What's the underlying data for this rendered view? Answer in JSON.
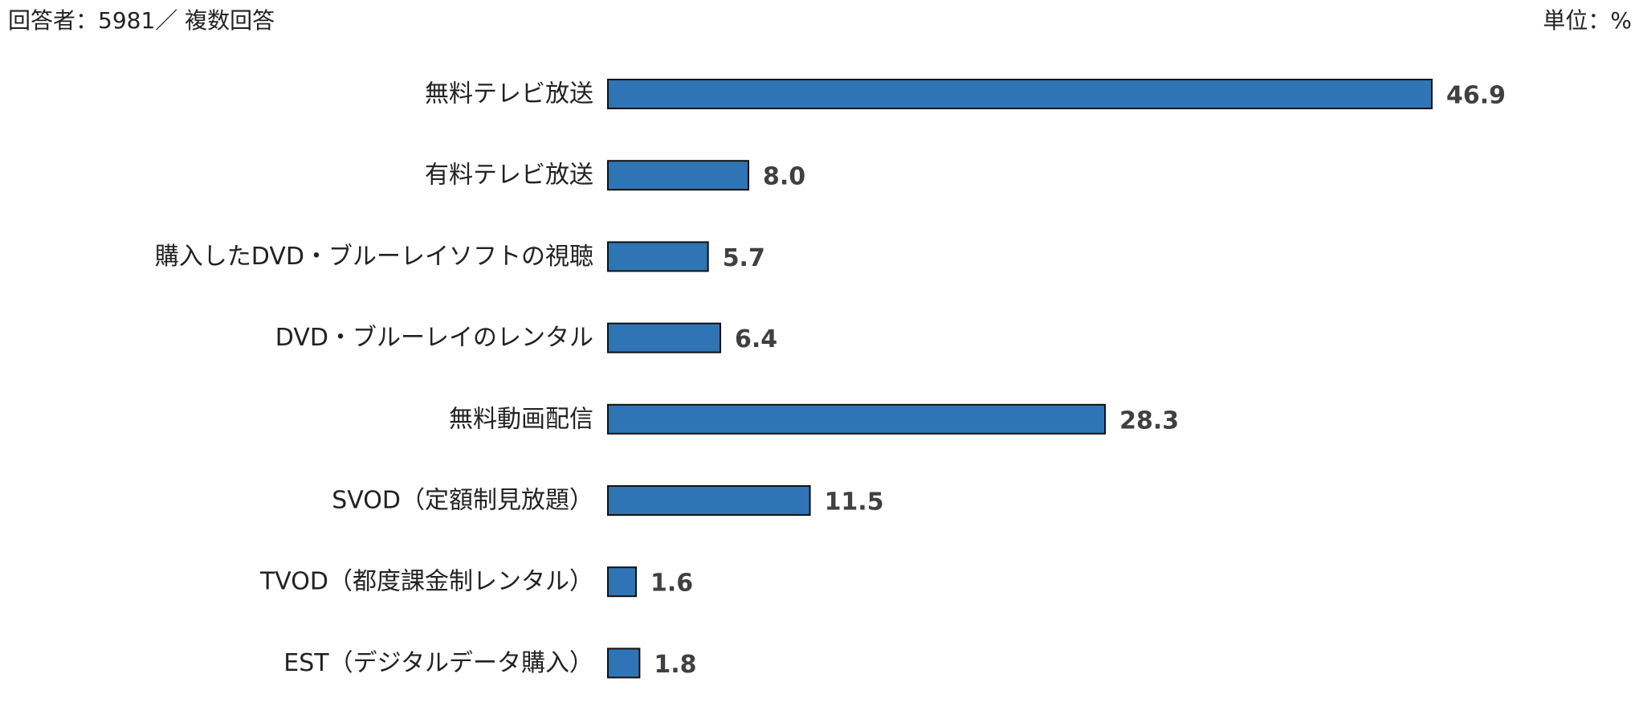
{
  "header": {
    "respondents": "回答者：5981／ 複数回答",
    "unit": "単位：%"
  },
  "colors": {
    "bar_fill": "#2F75B5",
    "bar_stroke": "#111111",
    "value_text": "#404040",
    "label_text": "#222222"
  },
  "chart_data": {
    "type": "bar",
    "orientation": "horizontal",
    "categories": [
      "無料テレビ放送",
      "有料テレビ放送",
      "購入したDVD・ブルーレイソフトの視聴",
      "DVD・ブルーレイのレンタル",
      "無料動画配信",
      "SVOD（定額制見放題）",
      "TVOD（都度課金制レンタル）",
      "EST（デジタルデータ購入）"
    ],
    "values": [
      46.9,
      8.0,
      5.7,
      6.4,
      28.3,
      11.5,
      1.6,
      1.8
    ],
    "value_labels": [
      "46.9",
      "8.0",
      "5.7",
      "6.4",
      "28.3",
      "11.5",
      "1.6",
      "1.8"
    ],
    "xlim": [
      0,
      60
    ],
    "grid": false,
    "legend": "none"
  }
}
